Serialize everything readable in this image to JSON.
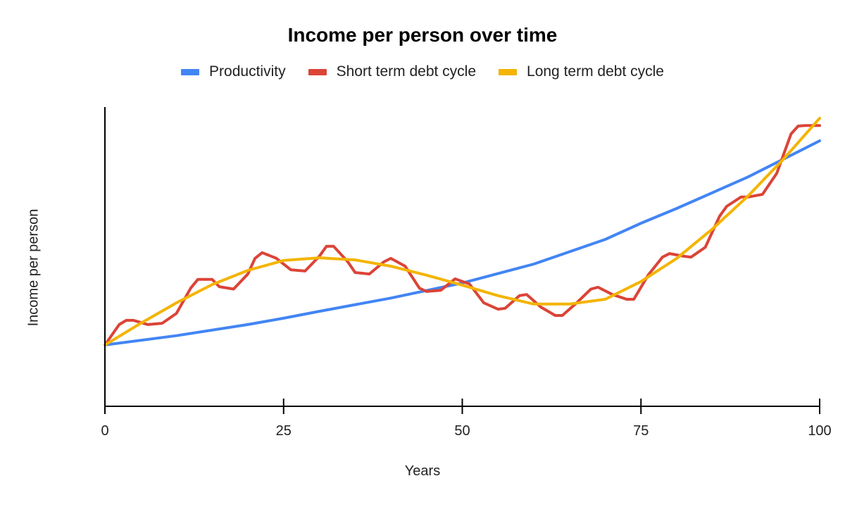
{
  "chart_data": {
    "type": "line",
    "title": "Income per person over time",
    "xlabel": "Years",
    "ylabel": "Income per person",
    "xlim": [
      0,
      100
    ],
    "ylim": [
      0,
      100
    ],
    "x_ticks": [
      0,
      25,
      50,
      75,
      100
    ],
    "y_ticks": [],
    "grid": false,
    "legend_position": "top",
    "series": [
      {
        "name": "Productivity",
        "color": "#4285F4",
        "x": [
          0,
          10,
          20,
          25,
          30,
          40,
          50,
          60,
          70,
          75,
          80,
          90,
          100
        ],
        "values": [
          20.4,
          23.5,
          27.2,
          29.3,
          31.6,
          36.0,
          41.0,
          47.3,
          55.5,
          60.9,
          65.8,
          76.3,
          88.3
        ]
      },
      {
        "name": "Short term debt cycle",
        "color": "#DB4437",
        "x": [
          0,
          2,
          3,
          4,
          6,
          8,
          10,
          12,
          13,
          15,
          16,
          18,
          20,
          21,
          22,
          24,
          26,
          28,
          30,
          31,
          32,
          34,
          35,
          37,
          39,
          40,
          42,
          44,
          45,
          47,
          49,
          51,
          53,
          55,
          56,
          58,
          59,
          61,
          63,
          64,
          66,
          68,
          69,
          71,
          73,
          74,
          76,
          78,
          79,
          81,
          82,
          84,
          86,
          87,
          89,
          90,
          92,
          94,
          96,
          97,
          98,
          100
        ],
        "values": [
          20.4,
          27.2,
          28.6,
          28.6,
          27.2,
          27.6,
          30.9,
          39.3,
          42.2,
          42.2,
          39.8,
          39.0,
          44.0,
          49.2,
          51.1,
          49.2,
          45.4,
          45.0,
          49.9,
          53.2,
          53.2,
          48.0,
          44.5,
          44.0,
          48.0,
          49.2,
          46.6,
          39.3,
          38.2,
          38.6,
          42.4,
          40.7,
          34.4,
          32.3,
          32.6,
          36.8,
          37.2,
          33.0,
          30.2,
          30.2,
          34.4,
          39.0,
          39.6,
          37.2,
          35.6,
          35.6,
          43.6,
          49.6,
          50.8,
          49.9,
          49.6,
          52.9,
          63.2,
          66.5,
          69.6,
          69.6,
          70.5,
          77.5,
          90.6,
          93.2,
          93.4,
          93.4
        ]
      },
      {
        "name": "Long term debt cycle",
        "color": "#F4B400",
        "x": [
          0,
          5,
          10,
          15,
          20,
          25,
          30,
          35,
          40,
          45,
          50,
          55,
          60,
          65,
          70,
          75,
          80,
          85,
          90,
          95,
          100
        ],
        "values": [
          20.4,
          27.6,
          34.4,
          40.5,
          45.2,
          48.5,
          49.4,
          48.7,
          46.6,
          43.6,
          40.3,
          36.8,
          34.0,
          34.0,
          35.6,
          41.5,
          49.2,
          59.0,
          70.0,
          82.4,
          95.8
        ]
      }
    ]
  },
  "title": "Income per person over time",
  "legend": [
    {
      "label": "Productivity",
      "color": "#4285F4"
    },
    {
      "label": "Short term debt cycle",
      "color": "#DB4437"
    },
    {
      "label": "Long term debt cycle",
      "color": "#F4B400"
    }
  ],
  "axes": {
    "xlabel": "Years",
    "ylabel": "Income per person",
    "x_tick_labels": [
      "0",
      "25",
      "50",
      "75",
      "100"
    ]
  }
}
